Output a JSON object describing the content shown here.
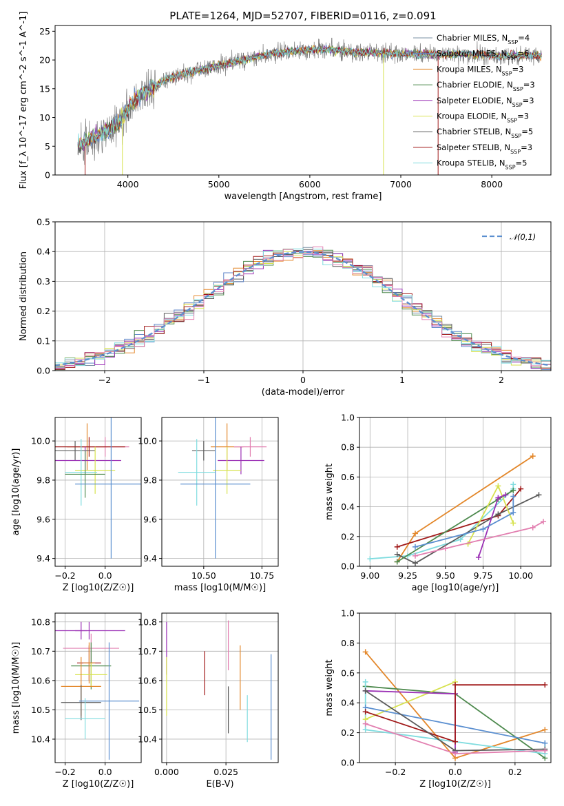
{
  "title": "PLATE=1264, MJD=52707, FIBERID=0116, z=0.091",
  "colors": {
    "chabrier_miles": "#7a8fa3",
    "salpeter_miles": "#5f86c9",
    "kroupa_miles": "#e3872a",
    "chabrier_elodie": "#4e8a4e",
    "salpeter_elodie": "#9b30b5",
    "kroupa_elodie": "#d7e24f",
    "chabrier_stelib": "#5a5a5a",
    "salpeter_stelib": "#a01818",
    "kroupa_stelib": "#7fdcdf",
    "gaussian": "#5b8fd0",
    "pink": "#e27fb0"
  },
  "chart_data": [
    {
      "type": "line",
      "name": "spectrum",
      "title": "PLATE=1264, MJD=52707, FIBERID=0116, z=0.091",
      "xlabel": "wavelength [Angstrom, rest frame]",
      "ylabel": "Flux [f_λ 10^-17 erg cm^-2 s^-1 A^-1]",
      "xlim": [
        3200,
        8650
      ],
      "ylim": [
        0,
        26
      ],
      "xticks": [
        "4000",
        "5000",
        "6000",
        "7000",
        "8000"
      ],
      "yticks": [
        "0",
        "5",
        "10",
        "15",
        "20",
        "25"
      ],
      "legend_position": "top-right",
      "legend": [
        "Chabrier MILES, N_SSP=4",
        "Salpeter MILES, N_SSP=6",
        "Kroupa MILES, N_SSP=3",
        "Chabrier ELODIE, N_SSP=3",
        "Salpeter ELODIE, N_SSP=3",
        "Kroupa ELODIE, N_SSP=3",
        "Chabrier STELIB, N_SSP=5",
        "Salpeter STELIB, N_SSP=3",
        "Kroupa STELIB, N_SSP=5"
      ],
      "continuum": {
        "x": [
          3450,
          3600,
          3750,
          3900,
          4000,
          4100,
          4200,
          4300,
          4400,
          4600,
          4800,
          5000,
          5200,
          5400,
          5600,
          5800,
          6000,
          6200,
          6400,
          6600,
          6800,
          7000,
          7200,
          7400,
          7600,
          7800,
          8000,
          8200,
          8400,
          8550
        ],
        "y": [
          5.0,
          6.5,
          7.5,
          9.0,
          11.5,
          13.5,
          14.5,
          15.5,
          16.5,
          17.5,
          18.3,
          19.0,
          19.8,
          20.5,
          21.2,
          21.5,
          21.8,
          21.8,
          21.5,
          21.3,
          21.2,
          21.0,
          21.0,
          21.0,
          21.0,
          21.0,
          20.8,
          20.7,
          20.8,
          20.8
        ]
      }
    },
    {
      "type": "histogram",
      "name": "residuals",
      "xlabel": "(data-model)/error",
      "ylabel": "Normed distribution",
      "xlim": [
        -2.5,
        2.5
      ],
      "ylim": [
        0,
        0.5
      ],
      "xticks": [
        "−2",
        "−1",
        "0",
        "1",
        "2"
      ],
      "yticks": [
        "0.0",
        "0.1",
        "0.2",
        "0.3",
        "0.4",
        "0.5"
      ],
      "legend": [
        "N(0,1)"
      ],
      "legend_position": "top-right",
      "bin_width": 0.1
    },
    {
      "type": "scatter",
      "name": "age-vs-Z",
      "xlabel": "Z [log10(Z/Z☉)]",
      "ylabel": "age [log10(age/yr)]",
      "xlim": [
        -0.25,
        0.18
      ],
      "ylim": [
        9.36,
        10.12
      ],
      "xticks": [
        "−0.2",
        "0.0"
      ],
      "yticks": [
        "9.4",
        "9.6",
        "9.8",
        "10.0"
      ],
      "points": [
        {
          "x": -0.09,
          "xerr": 0.1,
          "y": 9.97,
          "yerr": 0.12,
          "c": "kroupa_miles"
        },
        {
          "x": -0.15,
          "xerr": 0.1,
          "y": 9.95,
          "yerr": 0.05,
          "c": "chabrier_stelib"
        },
        {
          "x": 0.0,
          "xerr": 0.12,
          "y": 9.97,
          "yerr": 0.05,
          "c": "pink"
        },
        {
          "x": -0.08,
          "xerr": 0.18,
          "y": 9.97,
          "yerr": 0.05,
          "c": "salpeter_stelib"
        },
        {
          "x": -0.1,
          "xerr": 0.18,
          "y": 9.9,
          "yerr": 0.07,
          "c": "salpeter_elodie"
        },
        {
          "x": -0.05,
          "xerr": 0.1,
          "y": 9.85,
          "yerr": 0.12,
          "c": "kroupa_elodie"
        },
        {
          "x": -0.12,
          "xerr": 0.08,
          "y": 9.84,
          "yerr": 0.17,
          "c": "kroupa_stelib"
        },
        {
          "x": -0.1,
          "xerr": 0.1,
          "y": 9.83,
          "yerr": 0.12,
          "c": "chabrier_elodie"
        },
        {
          "x": 0.03,
          "xerr": 0.18,
          "y": 9.78,
          "yerr": 0.38,
          "c": "gaussian"
        }
      ]
    },
    {
      "type": "scatter",
      "name": "age-vs-mass",
      "xlabel": "mass [log10(M/M☉)]",
      "ylabel": "",
      "xlim": [
        10.32,
        10.82
      ],
      "ylim": [
        9.36,
        10.12
      ],
      "xticks": [
        "10.50",
        "10.75"
      ],
      "yticks": [
        "9.4",
        "9.6",
        "9.8",
        "10.0"
      ],
      "points": [
        {
          "x": 10.6,
          "xerr": 0.07,
          "y": 9.97,
          "yerr": 0.12,
          "c": "kroupa_miles"
        },
        {
          "x": 10.5,
          "xerr": 0.05,
          "y": 9.95,
          "yerr": 0.05,
          "c": "chabrier_stelib"
        },
        {
          "x": 10.7,
          "xerr": 0.07,
          "y": 9.97,
          "yerr": 0.05,
          "c": "pink"
        },
        {
          "x": 10.66,
          "xerr": 0.1,
          "y": 9.9,
          "yerr": 0.07,
          "c": "salpeter_elodie"
        },
        {
          "x": 10.6,
          "xerr": 0.06,
          "y": 9.85,
          "yerr": 0.12,
          "c": "kroupa_elodie"
        },
        {
          "x": 10.47,
          "xerr": 0.08,
          "y": 9.84,
          "yerr": 0.17,
          "c": "kroupa_stelib"
        },
        {
          "x": 10.55,
          "xerr": 0.15,
          "y": 9.78,
          "yerr": 0.38,
          "c": "gaussian"
        }
      ]
    },
    {
      "type": "line",
      "name": "weight-vs-age",
      "xlabel": "age [log10(age/yr)]",
      "ylabel": "mass weight",
      "xlim": [
        8.93,
        10.2
      ],
      "ylim": [
        0,
        1.0
      ],
      "xticks": [
        "9.00",
        "9.25",
        "9.50",
        "9.75",
        "10.00"
      ],
      "yticks": [
        "0.0",
        "0.2",
        "0.4",
        "0.6",
        "0.8",
        "1.0"
      ],
      "series": [
        {
          "c": "kroupa_stelib",
          "x": [
            9.0,
            9.25,
            9.6,
            9.95,
            9.95
          ],
          "y": [
            0.05,
            0.07,
            0.18,
            0.52,
            0.55
          ]
        },
        {
          "c": "kroupa_miles",
          "x": [
            9.18,
            9.3,
            10.08
          ],
          "y": [
            0.03,
            0.22,
            0.74
          ]
        },
        {
          "c": "salpeter_stelib",
          "x": [
            9.18,
            9.85,
            10.0
          ],
          "y": [
            0.13,
            0.34,
            0.52
          ]
        },
        {
          "c": "chabrier_stelib",
          "x": [
            9.18,
            9.3,
            9.85,
            10.12
          ],
          "y": [
            0.08,
            0.02,
            0.35,
            0.48
          ]
        },
        {
          "c": "chabrier_elodie",
          "x": [
            9.18,
            9.85,
            9.95
          ],
          "y": [
            0.03,
            0.45,
            0.51
          ]
        },
        {
          "c": "kroupa_elodie",
          "x": [
            9.65,
            9.85,
            9.95
          ],
          "y": [
            0.15,
            0.54,
            0.29
          ]
        },
        {
          "c": "salpeter_elodie",
          "x": [
            9.72,
            9.85,
            9.9
          ],
          "y": [
            0.06,
            0.46,
            0.48
          ]
        },
        {
          "c": "gaussian",
          "x": [
            9.3,
            9.75,
            9.95,
            9.95
          ],
          "y": [
            0.13,
            0.25,
            0.36,
            0.47
          ]
        },
        {
          "c": "pink",
          "x": [
            9.3,
            9.5,
            10.08,
            10.15
          ],
          "y": [
            0.07,
            0.12,
            0.26,
            0.3
          ]
        }
      ]
    },
    {
      "type": "scatter",
      "name": "mass-vs-Z",
      "xlabel": "Z [log10(Z/Z☉)]",
      "ylabel": "mass [log10(M/M☉)]",
      "xlim": [
        -0.25,
        0.18
      ],
      "ylim": [
        10.32,
        10.83
      ],
      "xticks": [
        "−0.2",
        "0.0"
      ],
      "yticks": [
        "10.4",
        "10.5",
        "10.6",
        "10.7",
        "10.8"
      ],
      "points": [
        {
          "x": -0.08,
          "xerr": 0.18,
          "y": 10.77,
          "yerr": 0.03,
          "c": "salpeter_elodie"
        },
        {
          "x": -0.12,
          "xerr": 0.03,
          "y": 10.77,
          "yerr": 0.03,
          "c": "salpeter_elodie"
        },
        {
          "x": -0.07,
          "xerr": 0.14,
          "y": 10.71,
          "yerr": 0.05,
          "c": "pink"
        },
        {
          "x": -0.08,
          "xerr": 0.06,
          "y": 10.66,
          "yerr": 0.06,
          "c": "salpeter_stelib"
        },
        {
          "x": -0.07,
          "xerr": 0.1,
          "y": 10.65,
          "yerr": 0.08,
          "c": "chabrier_elodie"
        },
        {
          "x": -0.08,
          "xerr": 0.03,
          "y": 10.66,
          "yerr": 0.07,
          "c": "kroupa_miles"
        },
        {
          "x": -0.07,
          "xerr": 0.08,
          "y": 10.62,
          "yerr": 0.04,
          "c": "kroupa_elodie"
        },
        {
          "x": -0.12,
          "xerr": 0.1,
          "y": 10.58,
          "yerr": 0.1,
          "c": "kroupa_miles"
        },
        {
          "x": -0.12,
          "xerr": 0.1,
          "y": 10.525,
          "yerr": 0.06,
          "c": "chabrier_stelib"
        },
        {
          "x": 0.02,
          "xerr": 0.15,
          "y": 10.53,
          "yerr": 0.2,
          "c": "gaussian"
        },
        {
          "x": -0.1,
          "xerr": 0.1,
          "y": 10.47,
          "yerr": 0.07,
          "c": "kroupa_stelib"
        }
      ]
    },
    {
      "type": "scatter",
      "name": "mass-vs-ebv",
      "xlabel": "E(B-V)",
      "ylabel": "",
      "xlim": [
        -0.002,
        0.047
      ],
      "ylim": [
        10.32,
        10.83
      ],
      "xticks": [
        "0.000",
        "0.025"
      ],
      "yticks": [
        "10.4",
        "10.5",
        "10.6",
        "10.7",
        "10.8"
      ],
      "points": [
        {
          "x": 0.0,
          "y": 10.71,
          "yerr": 0.09,
          "c": "salpeter_elodie"
        },
        {
          "x": 0.0,
          "y": 10.58,
          "yerr": 0.1,
          "c": "kroupa_elodie"
        },
        {
          "x": 0.016,
          "y": 10.625,
          "yerr": 0.075,
          "c": "salpeter_stelib"
        },
        {
          "x": 0.026,
          "y": 10.72,
          "yerr": 0.085,
          "c": "pink"
        },
        {
          "x": 0.026,
          "y": 10.5,
          "yerr": 0.08,
          "c": "chabrier_stelib"
        },
        {
          "x": 0.031,
          "y": 10.61,
          "yerr": 0.11,
          "c": "kroupa_miles"
        },
        {
          "x": 0.034,
          "y": 10.47,
          "yerr": 0.08,
          "c": "kroupa_stelib"
        },
        {
          "x": 0.044,
          "y": 10.51,
          "yerr": 0.18,
          "c": "gaussian"
        }
      ]
    },
    {
      "type": "line",
      "name": "weight-vs-Z",
      "xlabel": "Z [log10(Z/Z☉)]",
      "ylabel": "mass weight",
      "xlim": [
        -0.32,
        0.32
      ],
      "ylim": [
        0,
        1.0
      ],
      "xticks": [
        "−0.2",
        "0.0",
        "0.2"
      ],
      "yticks": [
        "0.0",
        "0.2",
        "0.4",
        "0.6",
        "0.8",
        "1.0"
      ],
      "series": [
        {
          "c": "kroupa_miles",
          "x": [
            -0.3,
            0.0,
            0.3
          ],
          "y": [
            0.74,
            0.03,
            0.22
          ]
        },
        {
          "c": "chabrier_elodie",
          "x": [
            -0.3,
            0.0,
            0.3
          ],
          "y": [
            0.51,
            0.46,
            0.03
          ]
        },
        {
          "c": "kroupa_stelib",
          "x": [
            -0.3,
            -0.3,
            0.3,
            0.3
          ],
          "y": [
            0.54,
            0.22,
            0.06,
            0.13
          ]
        },
        {
          "c": "kroupa_elodie",
          "x": [
            -0.3,
            0.0
          ],
          "y": [
            0.29,
            0.54
          ]
        },
        {
          "c": "salpeter_elodie",
          "x": [
            -0.3,
            0.0,
            0.0
          ],
          "y": [
            0.48,
            0.46,
            0.07
          ]
        },
        {
          "c": "gaussian",
          "x": [
            -0.3,
            0.3
          ],
          "y": [
            0.37,
            0.13
          ]
        },
        {
          "c": "salpeter_stelib",
          "x": [
            -0.3,
            0.0,
            0.0,
            0.3
          ],
          "y": [
            0.34,
            0.14,
            0.52,
            0.52
          ]
        },
        {
          "c": "chabrier_stelib",
          "x": [
            -0.3,
            0.0,
            0.3
          ],
          "y": [
            0.48,
            0.08,
            0.09
          ]
        },
        {
          "c": "pink",
          "x": [
            -0.3,
            0.0,
            0.3
          ],
          "y": [
            0.26,
            0.06,
            0.08
          ]
        }
      ]
    }
  ]
}
